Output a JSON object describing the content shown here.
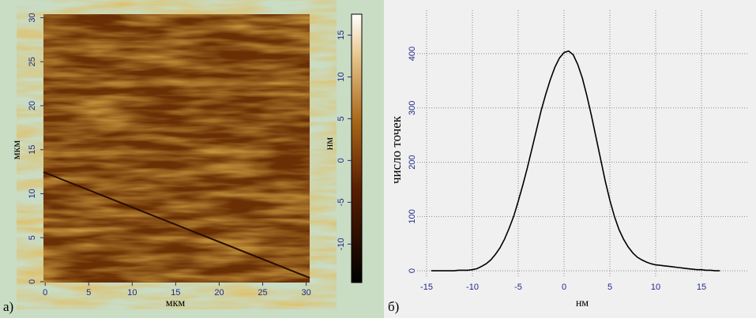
{
  "chart_data": [
    {
      "type": "image",
      "panel_label": "а)",
      "xlabel": "мкм",
      "ylabel": "мкм",
      "xlim": [
        -0.2,
        30.4
      ],
      "xticks": [
        0,
        5,
        10,
        15,
        20,
        25,
        30
      ],
      "ylim": [
        -0.1,
        30.4
      ],
      "yticks": [
        0,
        5,
        10,
        15,
        20,
        25,
        30
      ],
      "colorbar": {
        "label": "нм",
        "lim": [
          -14.6,
          17.5
        ],
        "ticks": [
          -10,
          -5,
          0,
          5,
          10,
          15
        ]
      }
    },
    {
      "type": "line",
      "panel_label": "б)",
      "xlabel": "нм",
      "ylabel": "число точек",
      "grid": true,
      "xlim": [
        -16,
        20
      ],
      "xticks": [
        -15,
        -10,
        -5,
        0,
        5,
        10,
        15
      ],
      "ylim": [
        -10,
        480
      ],
      "yticks": [
        0,
        100,
        200,
        300,
        400
      ],
      "x": [
        -14.5,
        -14,
        -13.5,
        -13,
        -12.5,
        -12,
        -11.5,
        -11,
        -10.5,
        -10,
        -9.5,
        -9,
        -8.5,
        -8,
        -7.5,
        -7,
        -6.5,
        -6,
        -5.5,
        -5,
        -4.5,
        -4,
        -3.5,
        -3,
        -2.5,
        -2,
        -1.5,
        -1,
        -0.5,
        0,
        0.5,
        1,
        1.5,
        2,
        2.5,
        3,
        3.5,
        4,
        4.5,
        5,
        5.5,
        6,
        6.5,
        7,
        7.5,
        8,
        8.5,
        9,
        9.5,
        10,
        10.5,
        11,
        11.5,
        12,
        12.5,
        13,
        13.5,
        14,
        14.5,
        15,
        15.5,
        16,
        16.5,
        17
      ],
      "series": [
        {
          "color": "#000000",
          "values": [
            0,
            0,
            0,
            0,
            0,
            0,
            1,
            1,
            1,
            2,
            4,
            8,
            13,
            20,
            30,
            42,
            58,
            78,
            100,
            128,
            158,
            190,
            225,
            260,
            295,
            325,
            352,
            375,
            392,
            402,
            405,
            398,
            380,
            355,
            322,
            285,
            245,
            205,
            165,
            130,
            100,
            76,
            58,
            44,
            33,
            25,
            20,
            16,
            13,
            11,
            10,
            9,
            8,
            7,
            6,
            5,
            4,
            3,
            2,
            2,
            1,
            1,
            0,
            0
          ]
        }
      ]
    }
  ]
}
